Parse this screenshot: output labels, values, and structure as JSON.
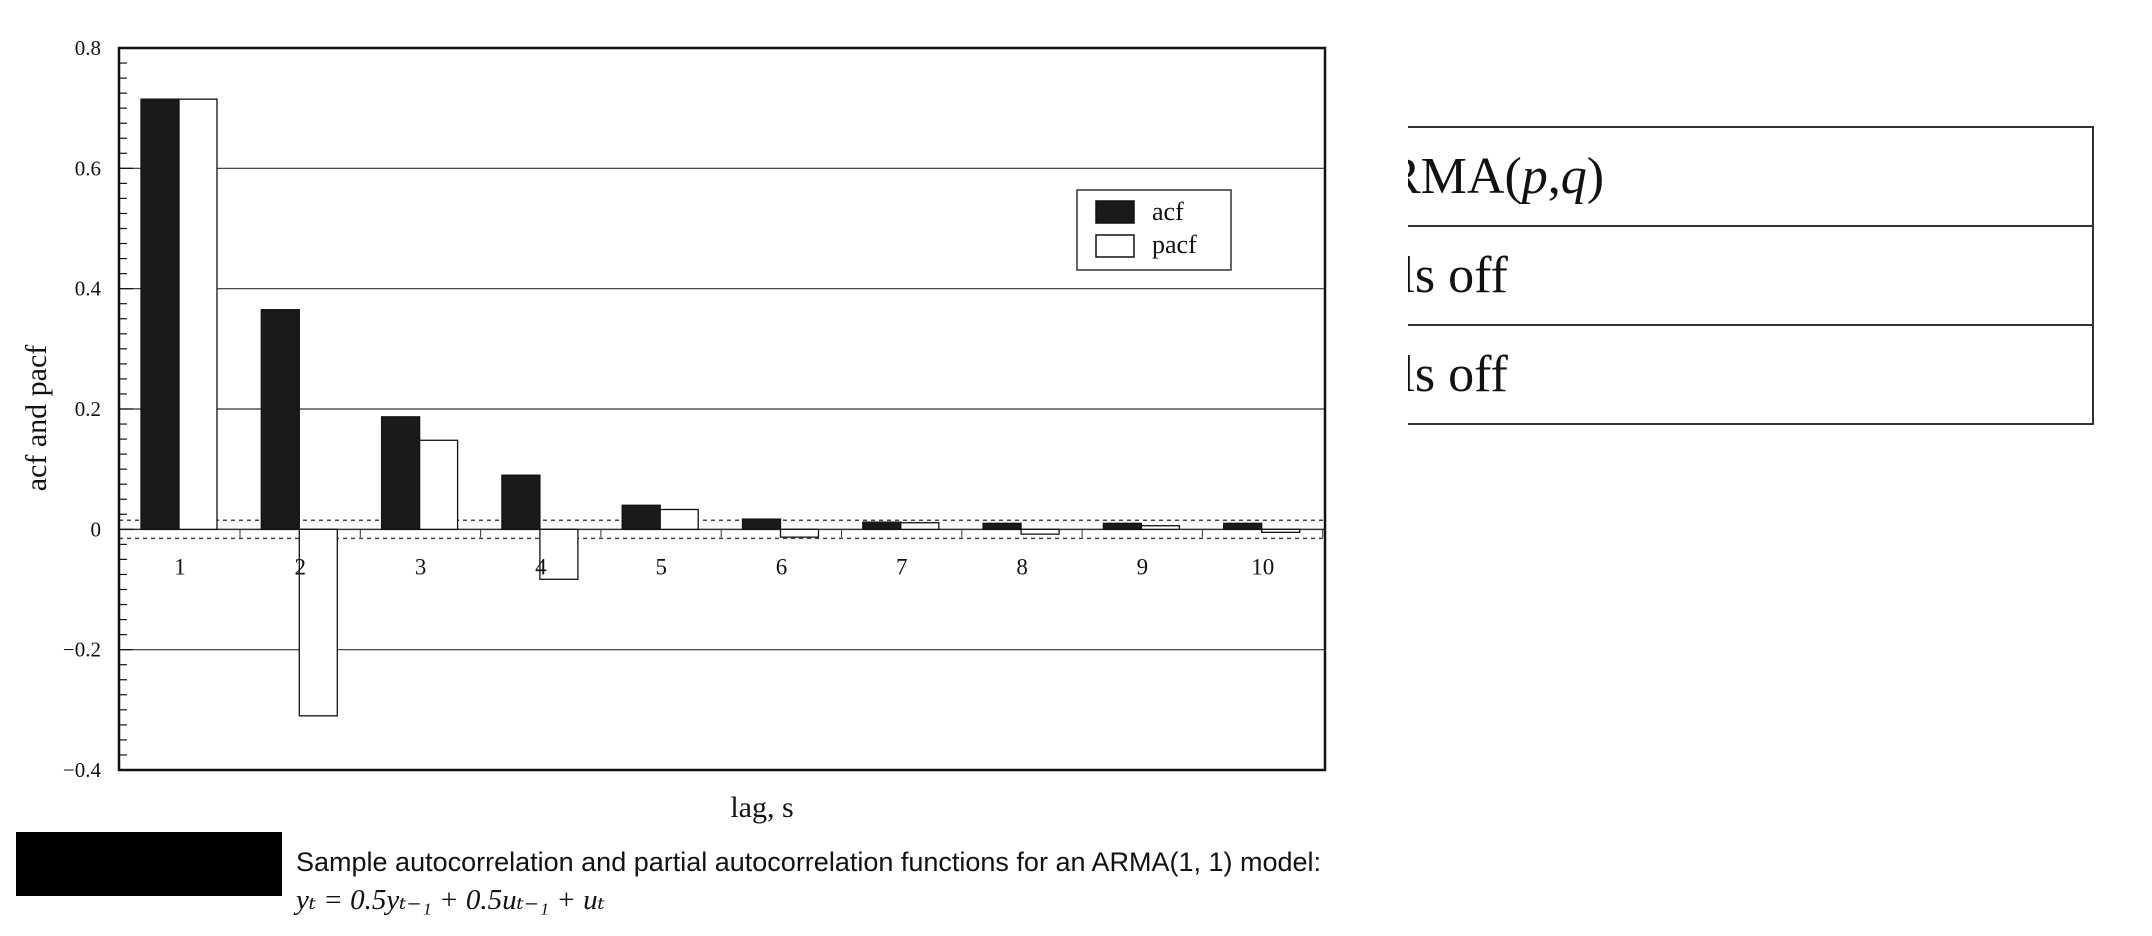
{
  "chart_data": {
    "type": "bar",
    "categories": [
      "1",
      "2",
      "3",
      "4",
      "5",
      "6",
      "7",
      "8",
      "9",
      "10"
    ],
    "series": [
      {
        "name": "acf",
        "color": "#1a1a1a",
        "values": [
          0.715,
          0.365,
          0.187,
          0.09,
          0.04,
          0.017,
          0.012,
          0.01,
          0.01,
          0.01
        ]
      },
      {
        "name": "pacf",
        "color": "#ffffff",
        "values": [
          0.715,
          -0.31,
          0.148,
          -0.083,
          0.033,
          -0.013,
          0.011,
          -0.008,
          0.006,
          -0.005
        ]
      }
    ],
    "confidence_band": 0.015,
    "xlabel": "lag, s",
    "ylabel": "acf and pacf",
    "ylim": [
      -0.4,
      0.8
    ],
    "yticks": [
      "0.8",
      "0.6",
      "0.4",
      "0.2",
      "0",
      "−0.2",
      "−0.4"
    ],
    "ytick_values": [
      0.8,
      0.6,
      0.4,
      0.2,
      0,
      -0.2,
      -0.4
    ],
    "grid": true,
    "legend": "top-right"
  },
  "caption": {
    "line1": "Sample autocorrelation and partial autocorrelation functions for an ARMA(1, 1) model:",
    "line2": "yₜ = 0.5yₜ₋₁ + 0.5uₜ₋₁ + uₜ"
  },
  "table": {
    "header_prefix": "RMA(",
    "header_p": "p",
    "header_sep": ",",
    "header_q": "q",
    "header_suffix": ")",
    "rows": [
      "ils off",
      "ils off"
    ]
  }
}
